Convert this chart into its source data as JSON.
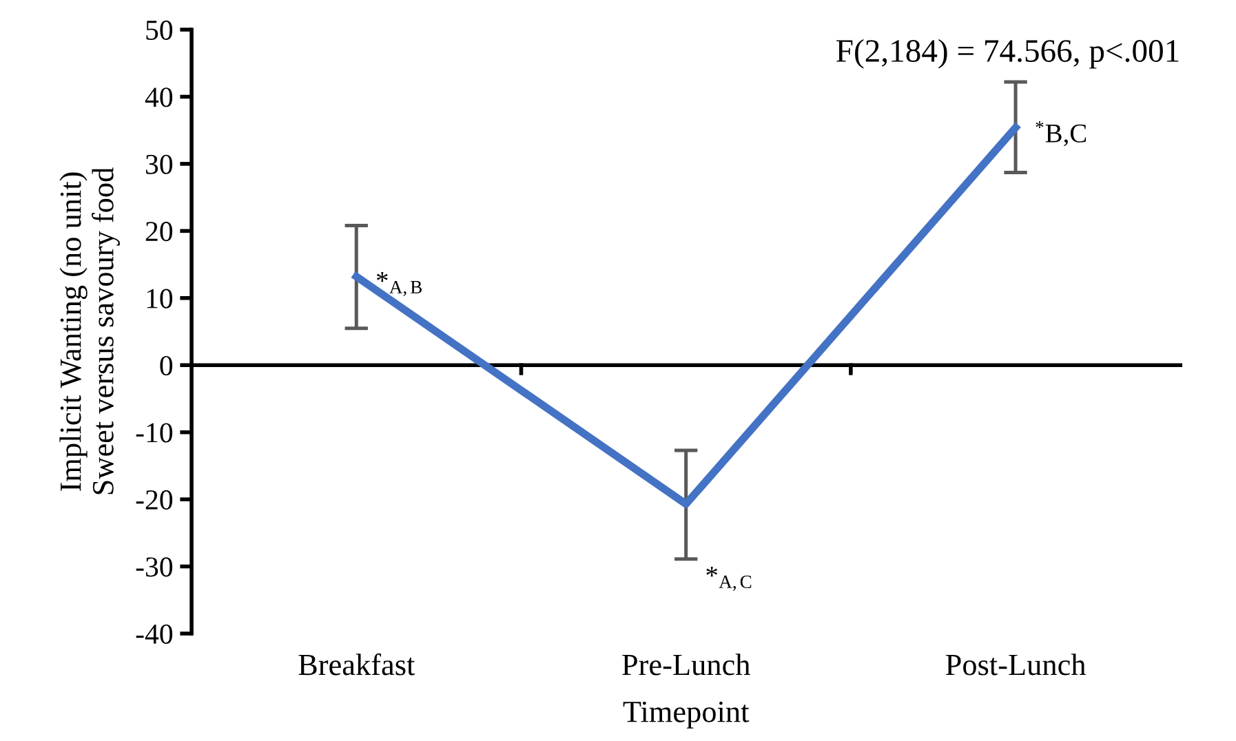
{
  "chart_data": {
    "type": "line",
    "xlabel": "Timepoint",
    "ylabel": "Implicit Wanting (no unit)\nSweet versus savoury food",
    "categories": [
      "Breakfast",
      "Pre-Lunch",
      "Post-Lunch"
    ],
    "series": [
      {
        "color": "#4472c4",
        "values": [
          13.2,
          -20.7,
          35.4
        ],
        "errors": [
          [
            5.5,
            20.8
          ],
          [
            -28.9,
            -12.7
          ],
          [
            28.7,
            42.2
          ]
        ]
      }
    ],
    "ylim": [
      -40,
      50
    ],
    "yticks": [
      -40,
      -30,
      -20,
      -10,
      0,
      10,
      20,
      30,
      40,
      50
    ],
    "marker": "none",
    "line_style": "solid",
    "legend": false,
    "annotations": [
      {
        "text": "*$_{A,B}$",
        "x": "Breakfast",
        "y": 13.2
      },
      {
        "text": "*$_{A,C}$",
        "x": "Pre-Lunch",
        "y": -28.9
      },
      {
        "text": "$^{*}$B,C",
        "x": "Post-Lunch",
        "y": 35.4
      },
      "F(2,184) = 74.566, p<.001"
    ]
  }
}
